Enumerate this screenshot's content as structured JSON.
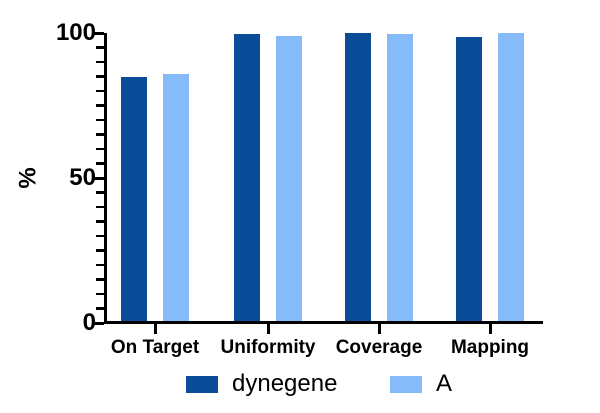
{
  "chart_data": {
    "type": "bar",
    "title": "",
    "categories": [
      "On Target",
      "Uniformity",
      "Coverage",
      "Mapping"
    ],
    "series": [
      {
        "name": "dynegene",
        "color": "#0a4c97",
        "values": [
          85,
          99.5,
          100,
          98.5
        ]
      },
      {
        "name": "A",
        "color": "#87baf8",
        "values": [
          86,
          99,
          99.8,
          100
        ]
      }
    ],
    "xlabel": "",
    "ylabel": "%",
    "ylim": [
      0,
      100
    ],
    "yticks_major": [
      0,
      50,
      100
    ],
    "ytick_minor_step": 5,
    "grid": false,
    "legend_position": "bottom",
    "axis_color": "#000000",
    "background_color": "#ffffff"
  }
}
